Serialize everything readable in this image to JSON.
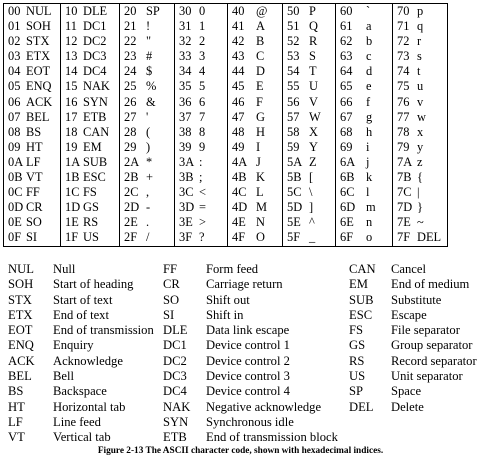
{
  "table": {
    "columns": [
      {
        "cells": [
          [
            "00",
            "NUL"
          ],
          [
            "01",
            "SOH"
          ],
          [
            "02",
            "STX"
          ],
          [
            "03",
            "ETX"
          ],
          [
            "04",
            "EOT"
          ],
          [
            "05",
            "ENQ"
          ],
          [
            "06",
            "ACK"
          ],
          [
            "07",
            "BEL"
          ],
          [
            "08",
            "BS"
          ],
          [
            "09",
            "HT"
          ],
          [
            "0A",
            "LF"
          ],
          [
            "0B",
            "VT"
          ],
          [
            "0C",
            "FF"
          ],
          [
            "0D",
            "CR"
          ],
          [
            "0E",
            "SO"
          ],
          [
            "0F",
            "SI"
          ]
        ]
      },
      {
        "cells": [
          [
            "10",
            "DLE"
          ],
          [
            "11",
            "DC1"
          ],
          [
            "12",
            "DC2"
          ],
          [
            "13",
            "DC3"
          ],
          [
            "14",
            "DC4"
          ],
          [
            "15",
            "NAK"
          ],
          [
            "16",
            "SYN"
          ],
          [
            "17",
            "ETB"
          ],
          [
            "18",
            "CAN"
          ],
          [
            "19",
            "EM"
          ],
          [
            "1A",
            "SUB"
          ],
          [
            "1B",
            "ESC"
          ],
          [
            "1C",
            "FS"
          ],
          [
            "1D",
            "GS"
          ],
          [
            "1E",
            "RS"
          ],
          [
            "1F",
            "US"
          ]
        ]
      },
      {
        "cells": [
          [
            "20",
            "SP"
          ],
          [
            "21",
            "!"
          ],
          [
            "22",
            "\""
          ],
          [
            "23",
            "#"
          ],
          [
            "24",
            "$"
          ],
          [
            "25",
            "%"
          ],
          [
            "26",
            "&"
          ],
          [
            "27",
            "'"
          ],
          [
            "28",
            "("
          ],
          [
            "29",
            ")"
          ],
          [
            "2A",
            "*"
          ],
          [
            "2B",
            "+"
          ],
          [
            "2C",
            ","
          ],
          [
            "2D",
            "-"
          ],
          [
            "2E",
            "."
          ],
          [
            "2F",
            "/"
          ]
        ]
      },
      {
        "cells": [
          [
            "30",
            "0"
          ],
          [
            "31",
            "1"
          ],
          [
            "32",
            "2"
          ],
          [
            "33",
            "3"
          ],
          [
            "34",
            "4"
          ],
          [
            "35",
            "5"
          ],
          [
            "36",
            "6"
          ],
          [
            "37",
            "7"
          ],
          [
            "38",
            "8"
          ],
          [
            "39",
            "9"
          ],
          [
            "3A",
            ":"
          ],
          [
            "3B",
            ";"
          ],
          [
            "3C",
            "<"
          ],
          [
            "3D",
            "="
          ],
          [
            "3E",
            ">"
          ],
          [
            "3F",
            "?"
          ]
        ]
      },
      {
        "cells": [
          [
            "40",
            "@"
          ],
          [
            "41",
            "A"
          ],
          [
            "42",
            "B"
          ],
          [
            "43",
            "C"
          ],
          [
            "44",
            "D"
          ],
          [
            "45",
            "E"
          ],
          [
            "46",
            "F"
          ],
          [
            "47",
            "G"
          ],
          [
            "48",
            "H"
          ],
          [
            "49",
            "I"
          ],
          [
            "4A",
            "J"
          ],
          [
            "4B",
            "K"
          ],
          [
            "4C",
            "L"
          ],
          [
            "4D",
            "M"
          ],
          [
            "4E",
            "N"
          ],
          [
            "4F",
            "O"
          ]
        ]
      },
      {
        "cells": [
          [
            "50",
            "P"
          ],
          [
            "51",
            "Q"
          ],
          [
            "52",
            "R"
          ],
          [
            "53",
            "S"
          ],
          [
            "54",
            "T"
          ],
          [
            "55",
            "U"
          ],
          [
            "56",
            "V"
          ],
          [
            "57",
            "W"
          ],
          [
            "58",
            "X"
          ],
          [
            "59",
            "Y"
          ],
          [
            "5A",
            "Z"
          ],
          [
            "5B",
            "["
          ],
          [
            "5C",
            "\\"
          ],
          [
            "5D",
            "]"
          ],
          [
            "5E",
            "^"
          ],
          [
            "5F",
            "_"
          ]
        ]
      },
      {
        "cells": [
          [
            "60",
            "`"
          ],
          [
            "61",
            "a"
          ],
          [
            "62",
            "b"
          ],
          [
            "63",
            "c"
          ],
          [
            "64",
            "d"
          ],
          [
            "65",
            "e"
          ],
          [
            "66",
            "f"
          ],
          [
            "67",
            "g"
          ],
          [
            "68",
            "h"
          ],
          [
            "69",
            "i"
          ],
          [
            "6A",
            "j"
          ],
          [
            "6B",
            "k"
          ],
          [
            "6C",
            "l"
          ],
          [
            "6D",
            "m"
          ],
          [
            "6E",
            "n"
          ],
          [
            "6F",
            "o"
          ]
        ]
      },
      {
        "cells": [
          [
            "70",
            "p"
          ],
          [
            "71",
            "q"
          ],
          [
            "72",
            "r"
          ],
          [
            "73",
            "s"
          ],
          [
            "74",
            "t"
          ],
          [
            "75",
            "u"
          ],
          [
            "76",
            "v"
          ],
          [
            "77",
            "w"
          ],
          [
            "78",
            "x"
          ],
          [
            "79",
            "y"
          ],
          [
            "7A",
            "z"
          ],
          [
            "7B",
            "{"
          ],
          [
            "7C",
            "|"
          ],
          [
            "7D",
            "}"
          ],
          [
            "7E",
            "~"
          ],
          [
            "7F",
            "DEL"
          ]
        ]
      }
    ]
  },
  "legend": {
    "columns": [
      {
        "items": [
          [
            "NUL",
            "Null"
          ],
          [
            "SOH",
            "Start of heading"
          ],
          [
            "STX",
            "Start of text"
          ],
          [
            "ETX",
            "End of text"
          ],
          [
            "EOT",
            "End of transmission"
          ],
          [
            "ENQ",
            "Enquiry"
          ],
          [
            "ACK",
            "Acknowledge"
          ],
          [
            "BEL",
            "Bell"
          ],
          [
            "BS",
            "Backspace"
          ],
          [
            "HT",
            "Horizontal tab"
          ],
          [
            "LF",
            "Line feed"
          ],
          [
            "VT",
            "Vertical tab"
          ]
        ]
      },
      {
        "items": [
          [
            "FF",
            "Form feed"
          ],
          [
            "CR",
            "Carriage return"
          ],
          [
            "SO",
            "Shift out"
          ],
          [
            "SI",
            "Shift in"
          ],
          [
            "DLE",
            "Data link escape"
          ],
          [
            "DC1",
            "Device control 1"
          ],
          [
            "DC2",
            "Device control 2"
          ],
          [
            "DC3",
            "Device control 3"
          ],
          [
            "DC4",
            "Device control 4"
          ],
          [
            "NAK",
            "Negative acknowledge"
          ],
          [
            "SYN",
            "Synchronous idle"
          ],
          [
            "ETB",
            "End of transmission block"
          ]
        ]
      },
      {
        "items": [
          [
            "CAN",
            "Cancel"
          ],
          [
            "EM",
            "End of medium"
          ],
          [
            "SUB",
            "Substitute"
          ],
          [
            "ESC",
            "Escape"
          ],
          [
            "FS",
            "File separator"
          ],
          [
            "GS",
            "Group separator"
          ],
          [
            "RS",
            "Record separator"
          ],
          [
            "US",
            "Unit separator"
          ],
          [
            "SP",
            "Space"
          ],
          [
            "DEL",
            "Delete"
          ]
        ]
      }
    ]
  },
  "caption": "Figure 2-13    The ASCII character code, shown with hexadecimal indices."
}
